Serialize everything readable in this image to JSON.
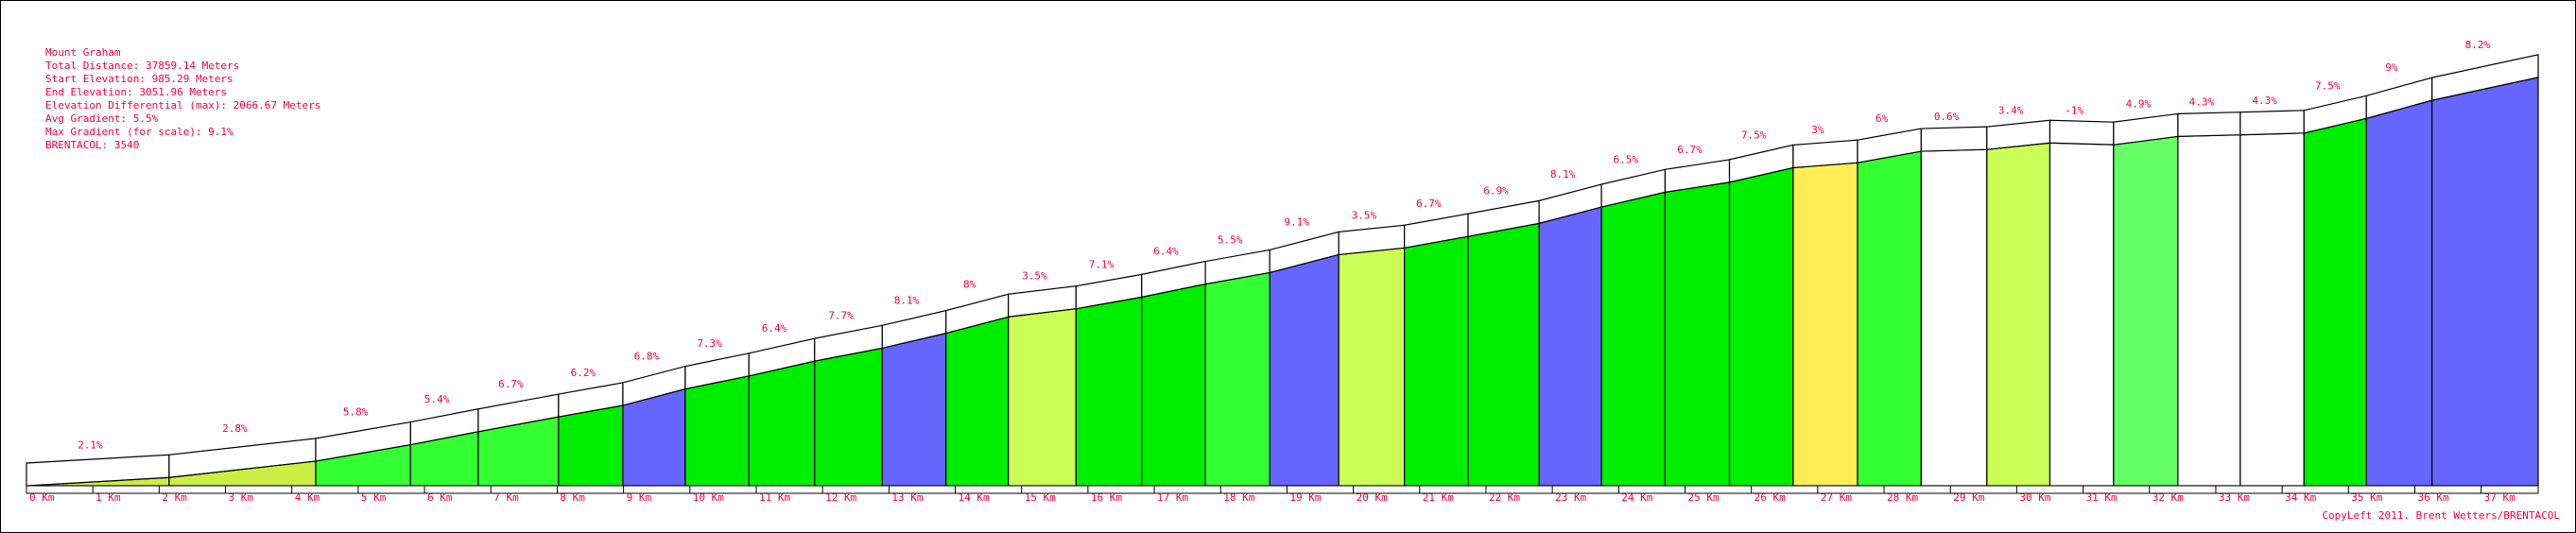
{
  "chart_data": {
    "type": "area",
    "title": "Mount Graham",
    "info": [
      "Total Distance: 37859.14 Meters",
      "Start Elevation: 985.29 Meters",
      "End Elevation: 3051.96 Meters",
      "Elevation Differential (max): 2066.67 Meters",
      "Avg Gradient: 5.5%",
      "Max Gradient (for scale): 9.1%",
      "BRENTACOL: 3540"
    ],
    "footer": "CopyLeft 2011. Brent Wetters/BRENTACOL",
    "x": [
      0,
      2.15,
      4.36,
      5.79,
      6.81,
      8.02,
      8.99,
      9.93,
      10.89,
      11.88,
      12.9,
      13.86,
      14.8,
      15.82,
      16.81,
      17.77,
      18.74,
      19.78,
      20.77,
      21.73,
      22.8,
      23.74,
      24.7,
      25.67,
      26.63,
      27.6,
      28.56,
      29.55,
      30.5,
      31.46,
      32.43,
      33.37,
      34.33,
      35.27,
      36.26,
      37.86
    ],
    "values": [
      985.29,
      1027,
      1110,
      1193,
      1259,
      1334,
      1392,
      1475,
      1541,
      1616,
      1682,
      1757,
      1840,
      1881,
      1940,
      2006,
      2064,
      2155,
      2189,
      2247,
      2313,
      2396,
      2471,
      2521,
      2595,
      2620,
      2678,
      2687,
      2720,
      2711,
      2753,
      2761,
      2770,
      2844,
      2936,
      3051.96
    ],
    "segment_labels": [
      "2.1%",
      "2.8%",
      "5.8%",
      "5.4%",
      "6.7%",
      "6.2%",
      "6.8%",
      "7.3%",
      "6.4%",
      "7.7%",
      "8.1%",
      "8%",
      "3.5%",
      "7.1%",
      "6.4%",
      "5.5%",
      "9.1%",
      "3.5%",
      "6.7%",
      "6.9%",
      "8.1%",
      "6.5%",
      "6.7%",
      "7.5%",
      "3%",
      "6%",
      "0.6%",
      "3.4%",
      "-1%",
      "4.9%",
      "4.3%",
      "4.3%",
      "7.5%",
      "9%",
      "8.2%"
    ],
    "segment_colors": [
      "#ccee44",
      "#ccee44",
      "#33ff33",
      "#33ff33",
      "#33ff33",
      "#00ee00",
      "#6666ff",
      "#00ee00",
      "#00ee00",
      "#00ee00",
      "#6666ff",
      "#00ee00",
      "#ccff55",
      "#00ee00",
      "#00ee00",
      "#33ff33",
      "#6666ff",
      "#ccff55",
      "#00ee00",
      "#00ee00",
      "#6666ff",
      "#00ee00",
      "#00ee00",
      "#00ee00",
      "#ffee55",
      "#33ff33",
      "#ffffff",
      "#ccff55",
      "#ffffff",
      "#66ff66",
      "#ffffff",
      "#ffffff",
      "#00ee00",
      "#6666ff",
      "#6666ff"
    ],
    "xlim": [
      0,
      37.86
    ],
    "ylim": [
      985.29,
      3300
    ],
    "xticks": [
      {
        "value": 0,
        "label": "0 Km"
      },
      {
        "value": 1,
        "label": "1 Km"
      },
      {
        "value": 2,
        "label": "2 Km"
      },
      {
        "value": 3,
        "label": "3 Km"
      },
      {
        "value": 4,
        "label": "4 Km"
      },
      {
        "value": 5,
        "label": "5 Km"
      },
      {
        "value": 6,
        "label": "6 Km"
      },
      {
        "value": 7,
        "label": "7 Km"
      },
      {
        "value": 8,
        "label": "8 Km"
      },
      {
        "value": 9,
        "label": "9 Km"
      },
      {
        "value": 10,
        "label": "10 Km"
      },
      {
        "value": 11,
        "label": "11 Km"
      },
      {
        "value": 12,
        "label": "12 Km"
      },
      {
        "value": 13,
        "label": "13 Km"
      },
      {
        "value": 14,
        "label": "14 Km"
      },
      {
        "value": 15,
        "label": "15 Km"
      },
      {
        "value": 16,
        "label": "16 Km"
      },
      {
        "value": 17,
        "label": "17 Km"
      },
      {
        "value": 18,
        "label": "18 Km"
      },
      {
        "value": 19,
        "label": "19 Km"
      },
      {
        "value": 20,
        "label": "20 Km"
      },
      {
        "value": 21,
        "label": "21 Km"
      },
      {
        "value": 22,
        "label": "22 Km"
      },
      {
        "value": 23,
        "label": "23 Km"
      },
      {
        "value": 24,
        "label": "24 Km"
      },
      {
        "value": 25,
        "label": "25 Km"
      },
      {
        "value": 26,
        "label": "26 Km"
      },
      {
        "value": 27,
        "label": "27 Km"
      },
      {
        "value": 28,
        "label": "28 Km"
      },
      {
        "value": 29,
        "label": "29 Km"
      },
      {
        "value": 30,
        "label": "30 Km"
      },
      {
        "value": 31,
        "label": "31 Km"
      },
      {
        "value": 32,
        "label": "32 Km"
      },
      {
        "value": 33,
        "label": "33 Km"
      },
      {
        "value": 34,
        "label": "34 Km"
      },
      {
        "value": 35,
        "label": "35 Km"
      },
      {
        "value": 36,
        "label": "36 Km"
      },
      {
        "value": 37,
        "label": "37 Km"
      }
    ]
  }
}
